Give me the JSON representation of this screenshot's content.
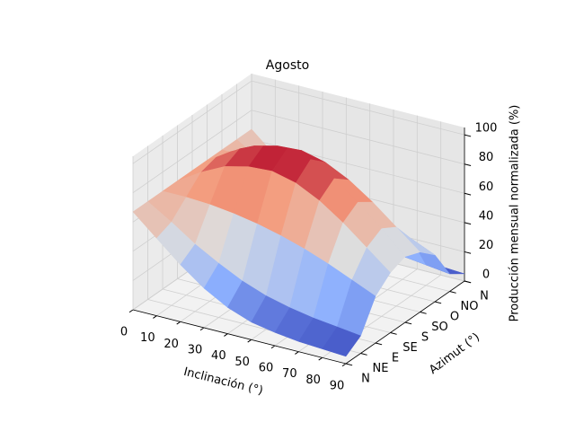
{
  "chart_data": {
    "type": "surface",
    "title": "Agosto",
    "xlabel": "Inclinación (°)",
    "ylabel": "Azimut (°)",
    "zlabel": "Producción mensual normalizada (%)",
    "x": [
      0,
      10,
      20,
      30,
      40,
      50,
      60,
      70,
      80,
      90
    ],
    "categories": [
      "N",
      "NE",
      "E",
      "SE",
      "S",
      "SO",
      "O",
      "NO",
      "N"
    ],
    "xlim": [
      0,
      90
    ],
    "xticks": [
      0,
      10,
      20,
      30,
      40,
      50,
      60,
      70,
      80,
      90
    ],
    "zlim": [
      0,
      105
    ],
    "zticks": [
      0,
      20,
      40,
      60,
      80,
      100
    ],
    "colormap": "coolwarm",
    "grid": true,
    "values": [
      [
        67,
        53,
        39,
        27,
        18,
        12,
        9,
        7,
        6,
        5
      ],
      [
        67,
        57,
        46,
        37,
        29,
        23,
        19,
        16,
        14,
        12
      ],
      [
        67,
        67,
        66,
        64,
        61,
        57,
        52,
        46,
        39,
        32
      ],
      [
        67,
        77,
        85,
        89,
        90,
        86,
        78,
        67,
        54,
        41
      ],
      [
        67,
        80,
        90,
        96,
        98,
        95,
        86,
        74,
        60,
        45
      ],
      [
        67,
        77,
        85,
        89,
        90,
        86,
        78,
        67,
        54,
        41
      ],
      [
        67,
        67,
        66,
        64,
        61,
        57,
        52,
        46,
        39,
        32
      ],
      [
        67,
        57,
        46,
        37,
        29,
        23,
        19,
        16,
        14,
        12
      ],
      [
        67,
        53,
        39,
        27,
        18,
        12,
        9,
        7,
        6,
        5
      ]
    ]
  }
}
